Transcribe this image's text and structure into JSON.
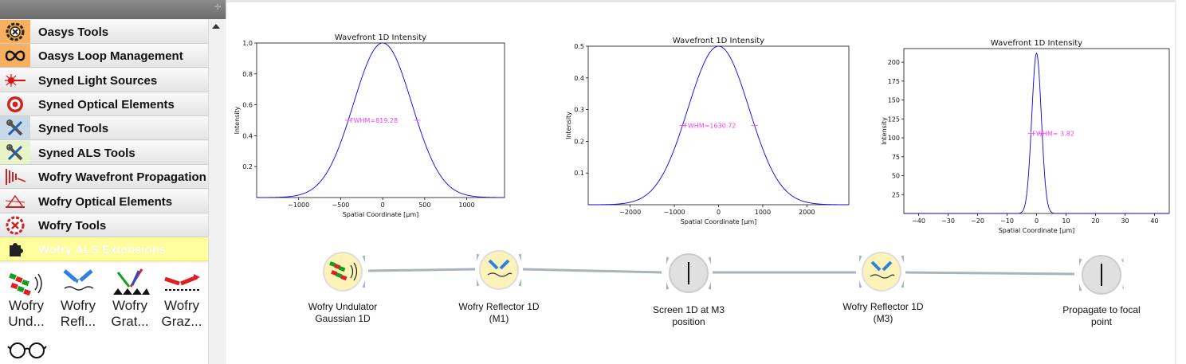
{
  "sidebar": {
    "categories": [
      {
        "label": "Oasys Tools",
        "icon": "gear-cross-icon"
      },
      {
        "label": "Oasys Loop Management",
        "icon": "infinity-icon"
      },
      {
        "label": "Syned Light Sources",
        "icon": "light-source-icon"
      },
      {
        "label": "Syned Optical Elements",
        "icon": "target-icon"
      },
      {
        "label": "Syned Tools",
        "icon": "wrench-screwdriver-icon"
      },
      {
        "label": "Syned ALS Tools",
        "icon": "wrench-screwdriver-icon"
      },
      {
        "label": "Wofry Wavefront Propagation",
        "icon": "wavefront-icon"
      },
      {
        "label": "Wofry Optical Elements",
        "icon": "optical-ray-icon"
      },
      {
        "label": "Wofry Tools",
        "icon": "gear-cross-icon"
      },
      {
        "label": "Wofry ALS Extensions",
        "icon": "puzzle-icon"
      }
    ],
    "widgets": [
      {
        "label_line1": "Wofry",
        "label_line2": "Und...",
        "icon": "undulator-icon"
      },
      {
        "label_line1": "Wofry",
        "label_line2": "Refl...",
        "icon": "reflector-icon"
      },
      {
        "label_line1": "Wofry",
        "label_line2": "Grat...",
        "icon": "grating-icon"
      },
      {
        "label_line1": "Wofry",
        "label_line2": "Graz...",
        "icon": "grazing-icon"
      },
      {
        "icon": "glasses-icon"
      }
    ]
  },
  "workflow": {
    "nodes": [
      {
        "label_line1": "Wofry Undulator",
        "label_line2": "Gaussian 1D",
        "icon": "undulator-icon"
      },
      {
        "label_line1": "Wofry Reflector 1D",
        "label_line2": "(M1)",
        "icon": "reflector-icon"
      },
      {
        "label_line1": "Screen 1D at M3",
        "label_line2": "position",
        "icon": "screen-icon"
      },
      {
        "label_line1": "Wofry Reflector 1D",
        "label_line2": "(M3)",
        "icon": "reflector-icon"
      },
      {
        "label_line1": "Propagate to focal",
        "label_line2": "point",
        "icon": "screen-icon"
      }
    ]
  },
  "chart_data": [
    {
      "type": "line",
      "title": "Wavefront 1D Intensity",
      "xlabel": "Spatial Coordinate [μm]",
      "ylabel": "Intensity",
      "xlim": [
        -1500,
        1450
      ],
      "ylim": [
        0,
        1.0
      ],
      "xticks": [
        -1000,
        -500,
        0,
        500,
        1000
      ],
      "yticks": [
        0.2,
        0.4,
        0.6,
        0.8,
        1.0
      ],
      "xticklabels": [
        "−1000",
        "−500",
        "0",
        "500",
        "1000"
      ],
      "yticklabels": [
        "0.2",
        "0.4",
        "0.6",
        "0.8",
        "1.0"
      ],
      "curve": {
        "kind": "gaussian",
        "peak": 1.0,
        "center": 0,
        "fwhm": 819.28,
        "color": "#0000ff"
      },
      "annotation": {
        "text": "FWHM=819.28",
        "y": 0.5,
        "color": "#ee44ee"
      }
    },
    {
      "type": "line",
      "title": "Wavefront 1D Intensity",
      "xlabel": "Spatial Coordinate [μm]",
      "ylabel": "Intensity",
      "xlim": [
        -2950,
        2950
      ],
      "ylim": [
        0,
        0.5
      ],
      "xticks": [
        -2000,
        -1000,
        0,
        1000,
        2000
      ],
      "yticks": [
        0.1,
        0.2,
        0.3,
        0.4,
        0.5
      ],
      "xticklabels": [
        "−2000",
        "−1000",
        "0",
        "1000",
        "2000"
      ],
      "yticklabels": [
        "0.1",
        "0.2",
        "0.3",
        "0.4",
        "0.5"
      ],
      "curve": {
        "kind": "gaussian",
        "peak": 0.5,
        "center": 0,
        "fwhm": 1630.72,
        "color": "#0000ff"
      },
      "annotation": {
        "text": "FWHM=1630.72",
        "y": 0.25,
        "color": "#ee44ee"
      }
    },
    {
      "type": "line",
      "title": "Wavefront 1D Intensity",
      "xlabel": "Spatial Coordinate [μm]",
      "ylabel": "Intensity",
      "xlim": [
        -45,
        45
      ],
      "ylim": [
        0,
        218
      ],
      "xticks": [
        -40,
        -30,
        -20,
        -10,
        0,
        10,
        20,
        30,
        40
      ],
      "yticks": [
        25,
        50,
        75,
        100,
        125,
        150,
        175,
        200
      ],
      "xticklabels": [
        "−40",
        "−30",
        "−20",
        "−10",
        "0",
        "10",
        "20",
        "30",
        "40"
      ],
      "yticklabels": [
        "25",
        "50",
        "75",
        "100",
        "125",
        "150",
        "175",
        "200"
      ],
      "curve": {
        "kind": "gaussian",
        "peak": 212,
        "center": 0,
        "fwhm": 3.82,
        "color": "#0000ff"
      },
      "annotation": {
        "text": "FWHM= 3.82",
        "y": 106,
        "color": "#ee44ee"
      }
    }
  ]
}
